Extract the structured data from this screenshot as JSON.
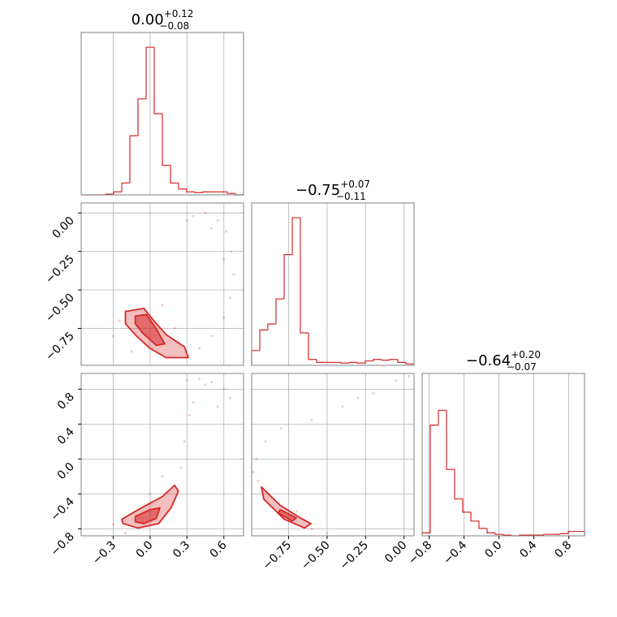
{
  "chart_data": {
    "type": "corner",
    "color": "#d62728",
    "grid": true,
    "params": [
      {
        "title": "0.00",
        "upper": "+0.12",
        "lower": "−0.08",
        "lim": [
          -0.56,
          0.76
        ],
        "ticks": [
          {
            "value": -0.3,
            "label": "−0.3"
          },
          {
            "value": 0.0,
            "label": "0.0"
          },
          {
            "value": 0.3,
            "label": "0.3"
          },
          {
            "value": 0.6,
            "label": "0.6"
          }
        ],
        "hist": {
          "ylim": [
            0,
            1.1
          ],
          "bins": [
            -0.56,
            -0.494,
            -0.428,
            -0.362,
            -0.296,
            -0.23,
            -0.164,
            -0.098,
            -0.032,
            0.034,
            0.1,
            0.166,
            0.232,
            0.298,
            0.364,
            0.43,
            0.496,
            0.562,
            0.628,
            0.694,
            0.76
          ],
          "values": [
            0,
            0,
            0,
            0.005,
            0.02,
            0.08,
            0.4,
            0.65,
            1.0,
            0.55,
            0.2,
            0.08,
            0.04,
            0.02,
            0.015,
            0.02,
            0.02,
            0.02,
            0.01,
            0
          ]
        }
      },
      {
        "title": "−0.75",
        "upper": "+0.07",
        "lower": "−0.11",
        "lim": [
          -0.99,
          0.065
        ],
        "ticks": [
          {
            "value": -0.75,
            "label": "−0.75"
          },
          {
            "value": -0.5,
            "label": "−0.50"
          },
          {
            "value": -0.25,
            "label": "−0.25"
          },
          {
            "value": 0.0,
            "label": "0.00"
          }
        ],
        "hist": {
          "ylim": [
            0,
            1.1
          ],
          "bins": [
            -0.99,
            -0.937,
            -0.885,
            -0.832,
            -0.779,
            -0.726,
            -0.674,
            -0.621,
            -0.568,
            -0.515,
            -0.463,
            -0.41,
            -0.357,
            -0.304,
            -0.252,
            -0.199,
            -0.146,
            -0.093,
            -0.041,
            0.012,
            0.065
          ],
          "values": [
            0.1,
            0.24,
            0.28,
            0.45,
            0.75,
            1.0,
            0.22,
            0.04,
            0.02,
            0.02,
            0.02,
            0.015,
            0.02,
            0.015,
            0.03,
            0.04,
            0.035,
            0.04,
            0.02,
            0.01
          ]
        }
      },
      {
        "title": "−0.64",
        "upper": "+0.20",
        "lower": "−0.07",
        "lim": [
          -0.88,
          0.98
        ],
        "ticks": [
          {
            "value": -0.8,
            "label": "−0.8"
          },
          {
            "value": -0.4,
            "label": "−0.4"
          },
          {
            "value": 0.0,
            "label": "0.0"
          },
          {
            "value": 0.4,
            "label": "0.4"
          },
          {
            "value": 0.8,
            "label": "0.8"
          }
        ],
        "hist": {
          "ylim": [
            0,
            1.1
          ],
          "bins": [
            -0.88,
            -0.787,
            -0.694,
            -0.601,
            -0.508,
            -0.415,
            -0.322,
            -0.229,
            -0.136,
            -0.043,
            0.05,
            0.143,
            0.236,
            0.329,
            0.422,
            0.515,
            0.608,
            0.701,
            0.794,
            0.887,
            0.98
          ],
          "values": [
            0.02,
            0.75,
            0.85,
            0.45,
            0.25,
            0.16,
            0.1,
            0.05,
            0.02,
            0.01,
            0.005,
            0,
            0.005,
            0.005,
            0.005,
            0.01,
            0.01,
            0.015,
            0.03,
            0.03
          ]
        }
      }
    ],
    "pairs": [
      {
        "x": [
          0.3,
          0.35,
          0.45,
          0.55,
          0.62,
          0.66,
          0.68,
          0.65,
          0.6,
          0.5,
          0.4,
          0.32,
          -0.25,
          -0.3,
          0.1,
          -0.15,
          0.2,
          0.5,
          0.6
        ],
        "y": [
          -0.05,
          -0.02,
          0.0,
          -0.05,
          -0.12,
          -0.25,
          -0.4,
          -0.55,
          -0.68,
          -0.8,
          -0.88,
          -0.93,
          -0.7,
          -0.8,
          -0.6,
          -0.9,
          -0.75,
          -0.1,
          -0.3
        ],
        "contours": [
          {
            "x": [
              -0.2,
              -0.05,
              0.03,
              0.13,
              0.28,
              0.31,
              0.13,
              0.0,
              -0.11,
              -0.2
            ],
            "y": [
              -0.64,
              -0.62,
              -0.7,
              -0.79,
              -0.87,
              -0.94,
              -0.94,
              -0.88,
              -0.8,
              -0.72
            ]
          },
          {
            "x": [
              -0.12,
              -0.03,
              0.04,
              0.12,
              0.05,
              -0.06,
              -0.12
            ],
            "y": [
              -0.67,
              -0.66,
              -0.74,
              -0.85,
              -0.86,
              -0.78,
              -0.72
            ]
          }
        ]
      },
      {
        "x": [
          0.23,
          0.25,
          0.28,
          0.32,
          0.3,
          0.4,
          0.5,
          0.6,
          0.65,
          0.45,
          -0.3,
          -0.2,
          0.0,
          0.1,
          0.35,
          0.55
        ],
        "y": [
          -0.35,
          -0.1,
          0.2,
          0.5,
          0.9,
          0.92,
          0.88,
          0.8,
          0.7,
          0.85,
          -0.75,
          -0.85,
          -0.4,
          -0.2,
          0.65,
          0.6
        ],
        "contours": [
          {
            "x": [
              -0.23,
              -0.07,
              0.1,
              0.2,
              0.23,
              0.17,
              0.07,
              -0.1,
              -0.22
            ],
            "y": [
              -0.69,
              -0.56,
              -0.43,
              -0.3,
              -0.37,
              -0.56,
              -0.74,
              -0.79,
              -0.74
            ]
          },
          {
            "x": [
              -0.12,
              0.0,
              0.08,
              0.05,
              -0.05,
              -0.12
            ],
            "y": [
              -0.66,
              -0.58,
              -0.56,
              -0.68,
              -0.74,
              -0.72
            ]
          }
        ]
      },
      {
        "x": [
          -0.96,
          -0.98,
          -0.95,
          -0.88,
          -0.6,
          -0.5,
          -0.8,
          -0.6,
          -0.4,
          -0.2,
          -0.05,
          0.03,
          -0.9,
          -0.7,
          -0.3
        ],
        "y": [
          0.0,
          -0.15,
          -0.25,
          -0.4,
          -0.8,
          -0.85,
          0.35,
          0.45,
          0.6,
          0.75,
          0.9,
          0.95,
          0.2,
          -0.6,
          0.7
        ],
        "contours": [
          {
            "x": [
              -0.927,
              -0.805,
              -0.674,
              -0.605,
              -0.647,
              -0.779,
              -0.911
            ],
            "y": [
              -0.32,
              -0.53,
              -0.675,
              -0.74,
              -0.79,
              -0.69,
              -0.46
            ]
          },
          {
            "x": [
              -0.805,
              -0.7,
              -0.726,
              -0.816
            ],
            "y": [
              -0.58,
              -0.675,
              -0.71,
              -0.62
            ]
          }
        ]
      }
    ]
  }
}
